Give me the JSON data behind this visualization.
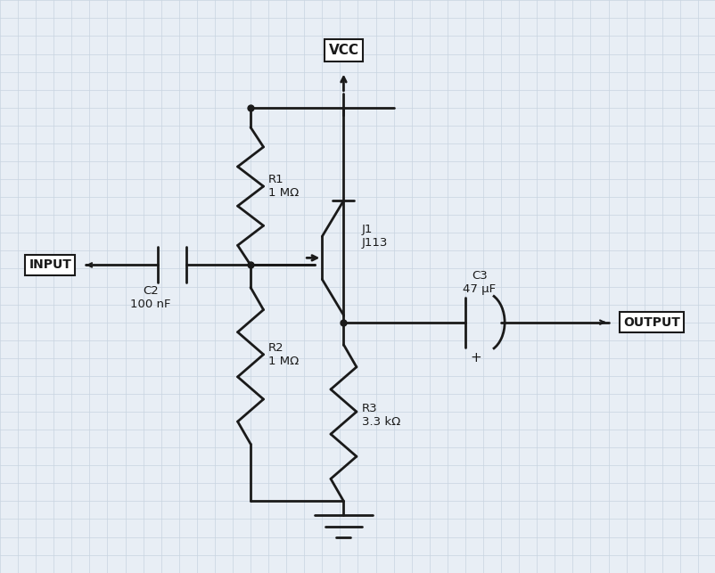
{
  "bg_color": "#e8eef5",
  "grid_color": "#c8d4e0",
  "line_color": "#1a1a1a",
  "line_width": 2.0,
  "fig_width": 8.03,
  "fig_height": 6.43,
  "components": {
    "VCC_label": "VCC",
    "INPUT_label": "INPUT",
    "OUTPUT_label": "OUTPUT",
    "R1_label": "R1\n1 MΩ",
    "R2_label": "R2\n1 MΩ",
    "R3_label": "R3\n3.3 kΩ",
    "C2_label": "C2\n100 nF",
    "C3_label": "C3\n47 μF",
    "J1_label": "J1\nJ113"
  }
}
